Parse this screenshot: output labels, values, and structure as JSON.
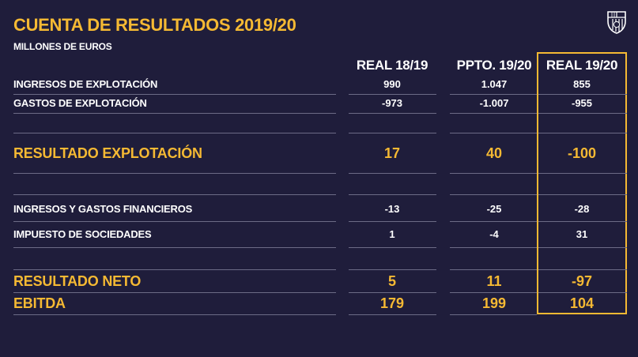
{
  "title": "CUENTA DE RESULTADOS 2019/20",
  "subtitle": "MILLONES DE EUROS",
  "crest_icon": "fc-barcelona-crest-icon",
  "accent_color": "#f5b933",
  "background_color": "#1f1d3b",
  "columns": [
    "REAL 18/19",
    "PPTO. 19/20",
    "REAL 19/20"
  ],
  "highlighted_column": "REAL 19/20",
  "rows": [
    {
      "label": "INGRESOS DE EXPLOTACIÓN",
      "values": [
        "990",
        "1.047",
        "855"
      ]
    },
    {
      "label": "GASTOS DE EXPLOTACIÓN",
      "values": [
        "-973",
        "-1.007",
        "-955"
      ]
    },
    {
      "label": "RESULTADO EXPLOTACIÓN",
      "values": [
        "17",
        "40",
        "-100"
      ]
    },
    {
      "label": "INGRESOS Y GASTOS FINANCIEROS",
      "values": [
        "-13",
        "-25",
        "-28"
      ]
    },
    {
      "label": "IMPUESTO DE SOCIEDADES",
      "values": [
        "1",
        "-4",
        "31"
      ]
    },
    {
      "label": "RESULTADO NETO",
      "values": [
        "5",
        "11",
        "-97"
      ]
    },
    {
      "label": "EBITDA",
      "values": [
        "179",
        "199",
        "104"
      ]
    }
  ]
}
